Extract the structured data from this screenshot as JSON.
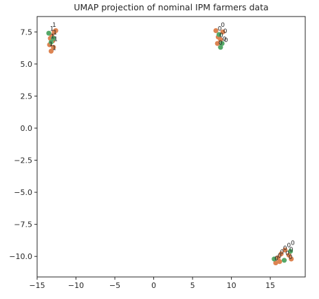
{
  "chart_data": {
    "type": "scatter",
    "title": "UMAP projection of nominal IPM farmers data",
    "xlabel": "",
    "ylabel": "",
    "xlim": [
      -15,
      19.5
    ],
    "ylim": [
      -11.6,
      8.7
    ],
    "xticks": [
      -15,
      -10,
      -5,
      0,
      5,
      10,
      15
    ],
    "yticks": [
      7.5,
      5.0,
      2.5,
      0.0,
      -2.5,
      -5.0,
      -7.5,
      -10.0
    ],
    "xtick_labels": [
      "−15",
      "−10",
      "−5",
      "0",
      "5",
      "10",
      "15"
    ],
    "ytick_labels": [
      "7.5",
      "5.0",
      "2.5",
      "0.0",
      "−2.5",
      "−5.0",
      "−7.5",
      "−10.0"
    ],
    "grid": false,
    "legend": "none",
    "colors": {
      "group_a": "#dd8452",
      "group_b": "#55a868"
    },
    "series": [
      {
        "color": "#dd8452",
        "points": [
          [
            -13.4,
            6.5
          ],
          [
            -13.2,
            6.0
          ],
          [
            -13.0,
            6.8
          ],
          [
            -13.1,
            7.2
          ],
          [
            -12.8,
            7.5
          ],
          [
            -13.3,
            7.0
          ],
          [
            -12.9,
            6.3
          ],
          [
            -12.6,
            7.6
          ],
          [
            8.0,
            7.6
          ],
          [
            8.3,
            7.1
          ],
          [
            8.2,
            6.6
          ],
          [
            8.6,
            6.9
          ],
          [
            8.9,
            7.5
          ],
          [
            15.7,
            -10.5
          ],
          [
            16.0,
            -10.1
          ],
          [
            16.4,
            -9.8
          ],
          [
            16.9,
            -9.5
          ],
          [
            17.4,
            -9.9
          ],
          [
            17.7,
            -10.2
          ],
          [
            16.2,
            -10.4
          ]
        ]
      },
      {
        "color": "#55a868",
        "points": [
          [
            -13.5,
            7.4
          ],
          [
            -12.9,
            7.0
          ],
          [
            -13.2,
            6.7
          ],
          [
            8.6,
            6.3
          ],
          [
            8.4,
            7.3
          ],
          [
            8.8,
            6.6
          ],
          [
            15.5,
            -10.2
          ],
          [
            16.8,
            -10.3
          ],
          [
            17.6,
            -9.6
          ]
        ]
      }
    ],
    "point_labels": [
      {
        "text": "1",
        "x": -12.8,
        "y": 7.9
      },
      {
        "text": "1",
        "x": -13.1,
        "y": 7.6
      },
      {
        "text": "1",
        "x": -12.7,
        "y": 7.3
      },
      {
        "text": "1",
        "x": -13.0,
        "y": 7.0
      },
      {
        "text": "1",
        "x": -12.6,
        "y": 6.8
      },
      {
        "text": "1",
        "x": -13.2,
        "y": 6.4
      },
      {
        "text": "1",
        "x": -12.8,
        "y": 6.1
      },
      {
        "text": "0",
        "x": 8.9,
        "y": 7.9
      },
      {
        "text": "0",
        "x": 8.5,
        "y": 7.6
      },
      {
        "text": "0",
        "x": 9.2,
        "y": 7.4
      },
      {
        "text": "0",
        "x": 8.7,
        "y": 7.1
      },
      {
        "text": "0",
        "x": 9.1,
        "y": 6.8
      },
      {
        "text": "0",
        "x": 8.6,
        "y": 6.5
      },
      {
        "text": "0",
        "x": 9.3,
        "y": 6.7
      },
      {
        "text": "0",
        "x": 17.9,
        "y": -9.1
      },
      {
        "text": "0",
        "x": 17.4,
        "y": -9.3
      },
      {
        "text": "0",
        "x": 17.7,
        "y": -9.6
      },
      {
        "text": "0",
        "x": 16.9,
        "y": -9.5
      },
      {
        "text": "0",
        "x": 17.2,
        "y": -9.9
      },
      {
        "text": "0",
        "x": 16.5,
        "y": -9.8
      },
      {
        "text": "0",
        "x": 16.2,
        "y": -10.1
      },
      {
        "text": "0",
        "x": 15.8,
        "y": -10.3
      },
      {
        "text": "0",
        "x": 17.6,
        "y": -10.2
      }
    ]
  }
}
